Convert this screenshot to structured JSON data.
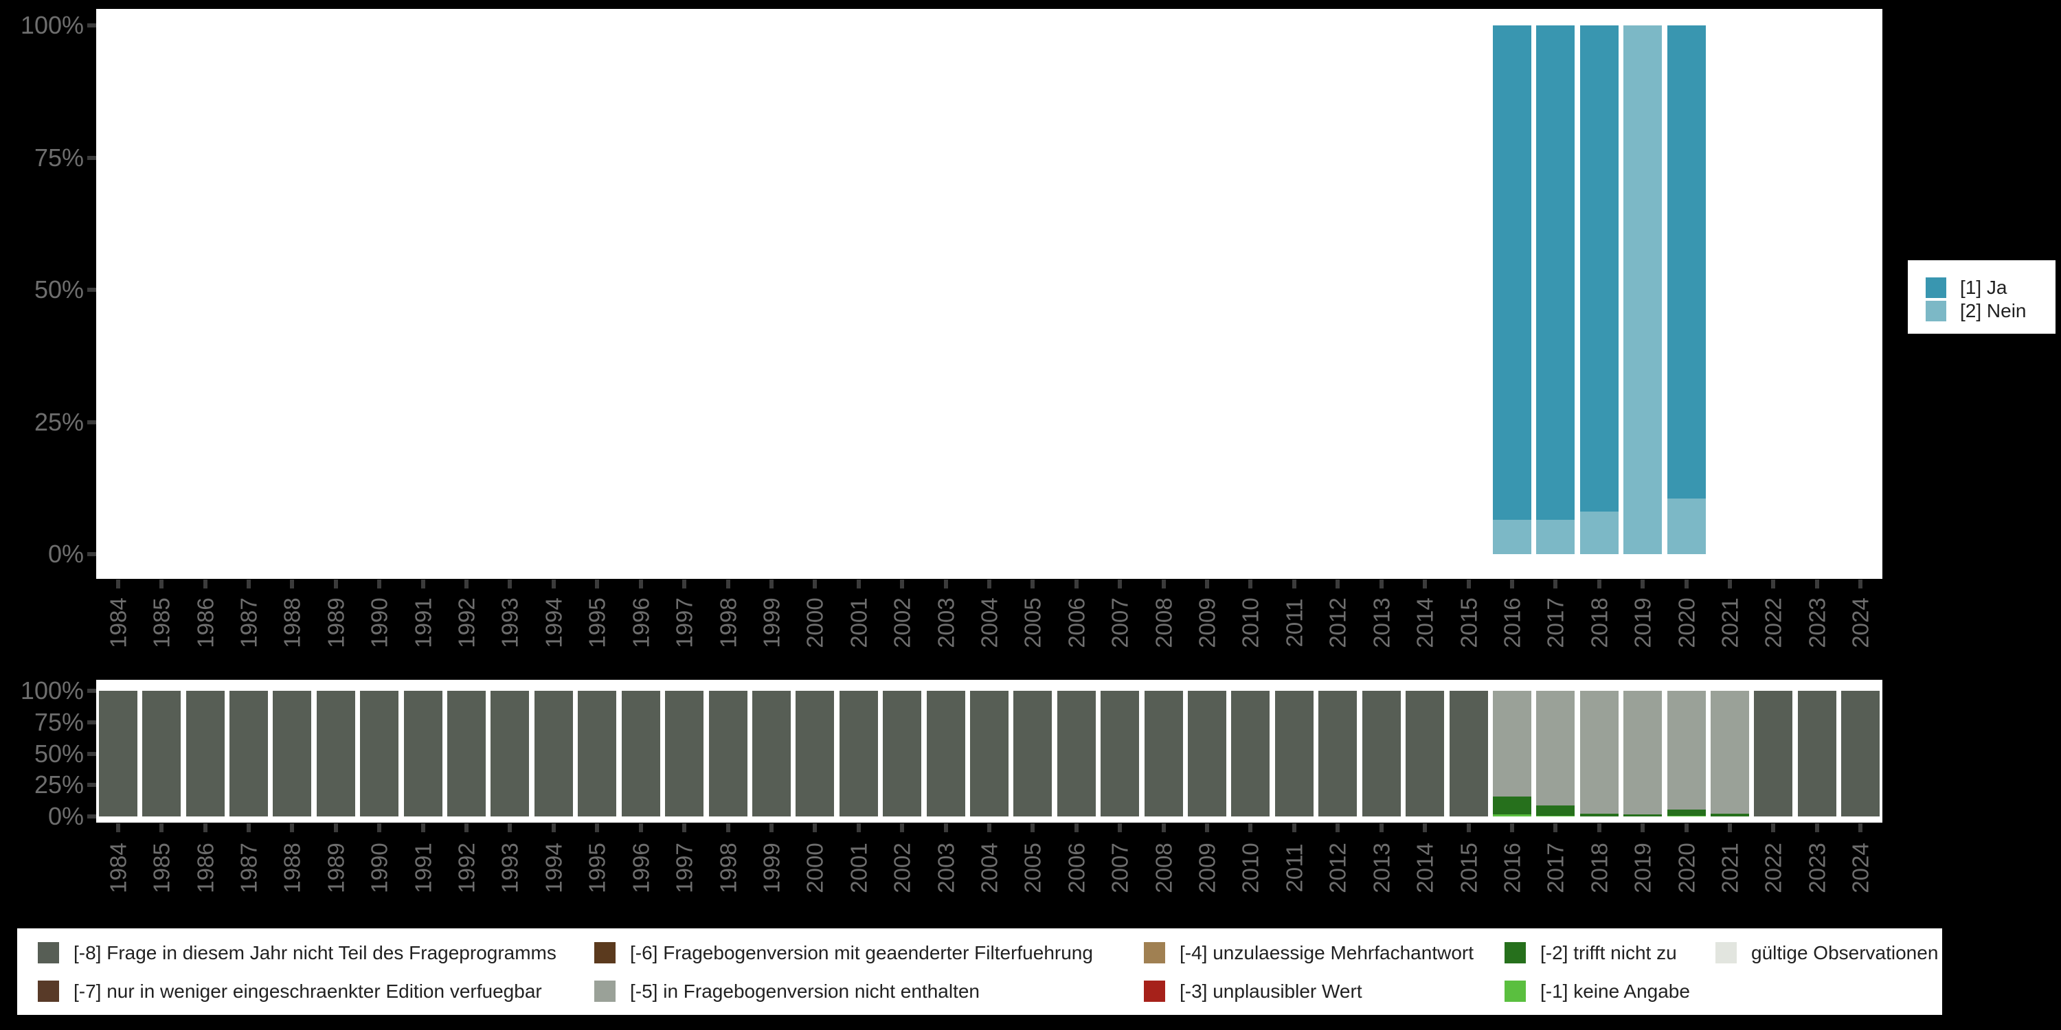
{
  "canvas": {
    "background": "#000000",
    "panel_background": "#ffffff"
  },
  "colors": {
    "axis_text": "#6e6e6e",
    "tick_mark": "#3b3b3b",
    "legend_text": "#212121",
    "legend_background": "#ffffff"
  },
  "chart_data": [
    {
      "id": "values",
      "type": "bar",
      "stacked": true,
      "orientation": "vertical",
      "unit": "percent",
      "title": "",
      "xlabel": "",
      "ylabel": "",
      "ylim": [
        0,
        100
      ],
      "grid": false,
      "legend_position": "right",
      "yticks": [
        "0%",
        "25%",
        "50%",
        "75%",
        "100%"
      ],
      "categories": [
        "1984",
        "1985",
        "1986",
        "1987",
        "1988",
        "1989",
        "1990",
        "1991",
        "1992",
        "1993",
        "1994",
        "1995",
        "1996",
        "1997",
        "1998",
        "1999",
        "2000",
        "2001",
        "2002",
        "2003",
        "2004",
        "2005",
        "2006",
        "2007",
        "2008",
        "2009",
        "2010",
        "2011",
        "2012",
        "2013",
        "2014",
        "2015",
        "2016",
        "2017",
        "2018",
        "2019",
        "2020",
        "2021",
        "2022",
        "2023",
        "2024"
      ],
      "series": [
        {
          "key": "ja",
          "name": "[1] Ja",
          "color": "#3996b0",
          "values": [
            0,
            0,
            0,
            0,
            0,
            0,
            0,
            0,
            0,
            0,
            0,
            0,
            0,
            0,
            0,
            0,
            0,
            0,
            0,
            0,
            0,
            0,
            0,
            0,
            0,
            0,
            0,
            0,
            0,
            0,
            0,
            0,
            93.5,
            93.5,
            92,
            0,
            89.5,
            0,
            0,
            0,
            0
          ]
        },
        {
          "key": "nein",
          "name": "[2] Nein",
          "color": "#7cb8c6",
          "values": [
            0,
            0,
            0,
            0,
            0,
            0,
            0,
            0,
            0,
            0,
            0,
            0,
            0,
            0,
            0,
            0,
            0,
            0,
            0,
            0,
            0,
            0,
            0,
            0,
            0,
            0,
            0,
            0,
            0,
            0,
            0,
            0,
            6.5,
            6.5,
            8,
            100,
            10.5,
            0,
            0,
            0,
            0
          ]
        }
      ]
    },
    {
      "id": "missings",
      "type": "bar",
      "stacked": true,
      "orientation": "vertical",
      "unit": "percent",
      "title": "",
      "xlabel": "",
      "ylabel": "",
      "ylim": [
        0,
        100
      ],
      "grid": false,
      "legend_position": "bottom",
      "yticks": [
        "0%",
        "25%",
        "50%",
        "75%",
        "100%"
      ],
      "categories": [
        "1984",
        "1985",
        "1986",
        "1987",
        "1988",
        "1989",
        "1990",
        "1991",
        "1992",
        "1993",
        "1994",
        "1995",
        "1996",
        "1997",
        "1998",
        "1999",
        "2000",
        "2001",
        "2002",
        "2003",
        "2004",
        "2005",
        "2006",
        "2007",
        "2008",
        "2009",
        "2010",
        "2011",
        "2012",
        "2013",
        "2014",
        "2015",
        "2016",
        "2017",
        "2018",
        "2019",
        "2020",
        "2021",
        "2022",
        "2023",
        "2024"
      ],
      "series": [
        {
          "key": "m8",
          "name": "[-8] Frage in diesem Jahr nicht Teil des Frageprogramms",
          "color": "#575e55",
          "values": [
            100,
            100,
            100,
            100,
            100,
            100,
            100,
            100,
            100,
            100,
            100,
            100,
            100,
            100,
            100,
            100,
            100,
            100,
            100,
            100,
            100,
            100,
            100,
            100,
            100,
            100,
            100,
            100,
            100,
            100,
            100,
            100,
            0,
            0,
            0,
            0,
            0,
            0,
            100,
            100,
            100
          ]
        },
        {
          "key": "m7",
          "name": "[-7] nur in weniger eingeschraenkter Edition verfuegbar",
          "color": "#583a28",
          "values": [
            0,
            0,
            0,
            0,
            0,
            0,
            0,
            0,
            0,
            0,
            0,
            0,
            0,
            0,
            0,
            0,
            0,
            0,
            0,
            0,
            0,
            0,
            0,
            0,
            0,
            0,
            0,
            0,
            0,
            0,
            0,
            0,
            0,
            0,
            0,
            0,
            0,
            0,
            0,
            0,
            0
          ]
        },
        {
          "key": "m6",
          "name": "[-6] Fragebogenversion mit geaenderter Filterfuehrung",
          "color": "#5b3a1e",
          "values": [
            0,
            0,
            0,
            0,
            0,
            0,
            0,
            0,
            0,
            0,
            0,
            0,
            0,
            0,
            0,
            0,
            0,
            0,
            0,
            0,
            0,
            0,
            0,
            0,
            0,
            0,
            0,
            0,
            0,
            0,
            0,
            0,
            0,
            0,
            0,
            0,
            0,
            0,
            0,
            0,
            0
          ]
        },
        {
          "key": "m5",
          "name": "[-5] in Fragebogenversion nicht enthalten",
          "color": "#9aa198",
          "values": [
            0,
            0,
            0,
            0,
            0,
            0,
            0,
            0,
            0,
            0,
            0,
            0,
            0,
            0,
            0,
            0,
            0,
            0,
            0,
            0,
            0,
            0,
            0,
            0,
            0,
            0,
            0,
            0,
            0,
            0,
            0,
            0,
            84,
            91.5,
            98,
            98.5,
            94.5,
            98,
            0,
            0,
            0
          ]
        },
        {
          "key": "m4",
          "name": "[-4] unzulaessige Mehrfachantwort",
          "color": "#a08052",
          "values": [
            0,
            0,
            0,
            0,
            0,
            0,
            0,
            0,
            0,
            0,
            0,
            0,
            0,
            0,
            0,
            0,
            0,
            0,
            0,
            0,
            0,
            0,
            0,
            0,
            0,
            0,
            0,
            0,
            0,
            0,
            0,
            0,
            0,
            0,
            0,
            0,
            0,
            0,
            0,
            0,
            0
          ]
        },
        {
          "key": "m3",
          "name": "[-3] unplausibler Wert",
          "color": "#a6211a",
          "values": [
            0,
            0,
            0,
            0,
            0,
            0,
            0,
            0,
            0,
            0,
            0,
            0,
            0,
            0,
            0,
            0,
            0,
            0,
            0,
            0,
            0,
            0,
            0,
            0,
            0,
            0,
            0,
            0,
            0,
            0,
            0,
            0,
            0,
            0,
            0,
            0,
            0,
            0,
            0,
            0,
            0
          ]
        },
        {
          "key": "m2",
          "name": "[-2] trifft nicht zu",
          "color": "#26701c",
          "values": [
            0,
            0,
            0,
            0,
            0,
            0,
            0,
            0,
            0,
            0,
            0,
            0,
            0,
            0,
            0,
            0,
            0,
            0,
            0,
            0,
            0,
            0,
            0,
            0,
            0,
            0,
            0,
            0,
            0,
            0,
            0,
            0,
            14.5,
            8,
            2,
            1.5,
            5,
            2,
            0,
            0,
            0
          ]
        },
        {
          "key": "m1",
          "name": "[-1] keine Angabe",
          "color": "#5abf3f",
          "values": [
            0,
            0,
            0,
            0,
            0,
            0,
            0,
            0,
            0,
            0,
            0,
            0,
            0,
            0,
            0,
            0,
            0,
            0,
            0,
            0,
            0,
            0,
            0,
            0,
            0,
            0,
            0,
            0,
            0,
            0,
            0,
            0,
            1.5,
            0.5,
            0,
            0,
            0.5,
            0,
            0,
            0,
            0
          ]
        },
        {
          "key": "valid",
          "name": "gültige Observationen",
          "color": "#e2e5df",
          "values": [
            0,
            0,
            0,
            0,
            0,
            0,
            0,
            0,
            0,
            0,
            0,
            0,
            0,
            0,
            0,
            0,
            0,
            0,
            0,
            0,
            0,
            0,
            0,
            0,
            0,
            0,
            0,
            0,
            0,
            0,
            0,
            0,
            0,
            0,
            0,
            0,
            0,
            0,
            0,
            0,
            0
          ]
        }
      ]
    }
  ],
  "legend_top": {
    "items": [
      {
        "key": "ja",
        "label": "[1] Ja",
        "color": "#3996b0"
      },
      {
        "key": "nein",
        "label": "[2] Nein",
        "color": "#7cb8c6"
      }
    ]
  },
  "legend_bottom": {
    "items": [
      {
        "key": "m8",
        "label": "[-8] Frage in diesem Jahr nicht Teil des Frageprogramms",
        "color": "#575e55"
      },
      {
        "key": "m7",
        "label": "[-7] nur in weniger eingeschraenkter Edition verfuegbar",
        "color": "#583a28"
      },
      {
        "key": "m6",
        "label": "[-6] Fragebogenversion mit geaenderter Filterfuehrung",
        "color": "#5b3a1e"
      },
      {
        "key": "m5",
        "label": "[-5] in Fragebogenversion nicht enthalten",
        "color": "#9aa198"
      },
      {
        "key": "m4",
        "label": "[-4] unzulaessige Mehrfachantwort",
        "color": "#a08052"
      },
      {
        "key": "m3",
        "label": "[-3] unplausibler Wert",
        "color": "#a6211a"
      },
      {
        "key": "m2",
        "label": "[-2] trifft nicht zu",
        "color": "#26701c"
      },
      {
        "key": "m1",
        "label": "[-1] keine Angabe",
        "color": "#5abf3f"
      },
      {
        "key": "valid",
        "label": "gültige Observationen",
        "color": "#e2e5df"
      }
    ]
  }
}
